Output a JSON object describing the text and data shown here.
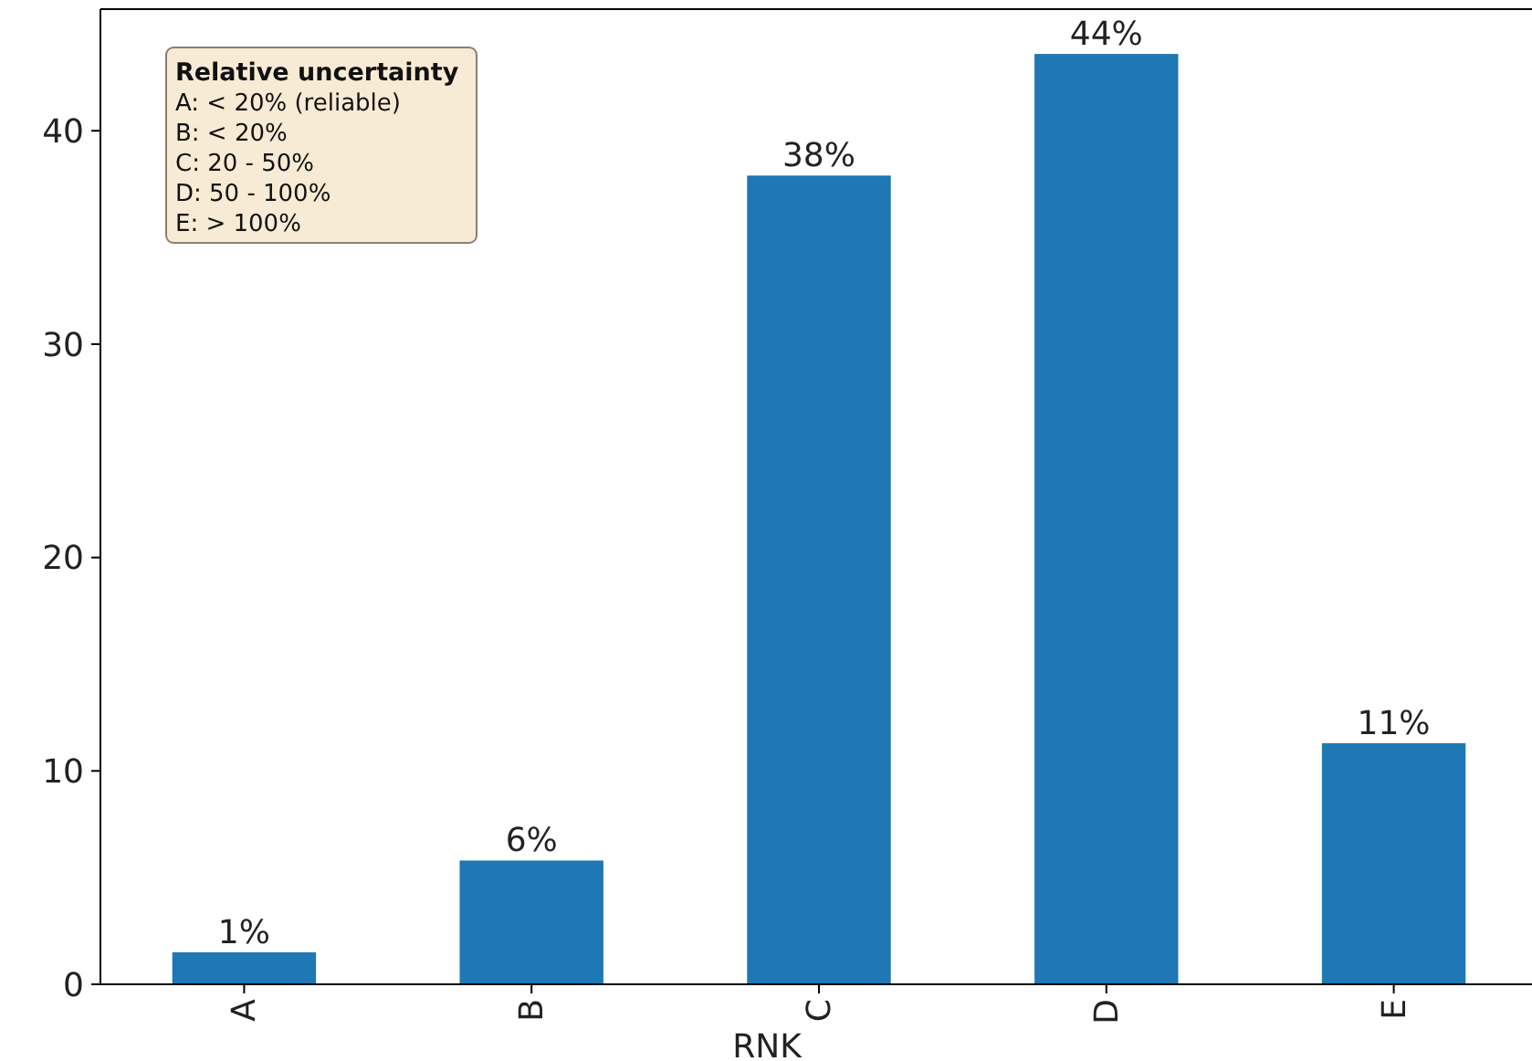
{
  "chart_data": {
    "type": "bar",
    "xlabel": "RNK",
    "categories": [
      "A",
      "B",
      "C",
      "D",
      "E"
    ],
    "values": [
      1.5,
      5.8,
      37.9,
      43.6,
      11.3
    ],
    "color": "#1f77b4",
    "value_labels": [
      "1%",
      "6%",
      "38%",
      "44%",
      "11%"
    ],
    "ylim": [
      0,
      45.7
    ],
    "yticks": [
      0,
      10,
      20,
      30,
      40
    ],
    "grid": false,
    "annotations": [
      "Relative uncertainty",
      "A: < 20% (reliable)",
      "B: < 20%",
      "C: 20 - 50%",
      "D: 50 - 100%",
      "E: > 100%"
    ]
  }
}
